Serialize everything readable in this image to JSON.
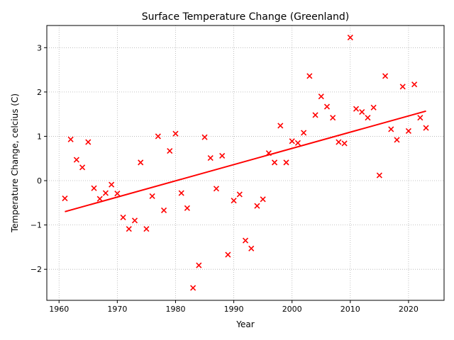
{
  "chart_data": {
    "type": "scatter",
    "title": "Surface Temperature Change (Greenland)",
    "xlabel": "Year",
    "ylabel": "Temperature Change, celcius (C)",
    "xlim": [
      1957.9,
      2026.1
    ],
    "ylim": [
      -2.7,
      3.5
    ],
    "xticks": [
      1960,
      1970,
      1980,
      1990,
      2000,
      2010,
      2020
    ],
    "yticks": [
      -2,
      -1,
      0,
      1,
      2,
      3
    ],
    "ytick_labels": [
      "−2",
      "−1",
      "0",
      "1",
      "2",
      "3"
    ],
    "grid": true,
    "marker_color": "#ff0000",
    "trend_color": "#ff0000",
    "series": [
      {
        "marker": "x",
        "x": [
          1961,
          1962,
          1963,
          1964,
          1965,
          1966,
          1967,
          1968,
          1969,
          1970,
          1971,
          1972,
          1973,
          1974,
          1975,
          1976,
          1977,
          1978,
          1979,
          1980,
          1981,
          1982,
          1983,
          1984,
          1985,
          1986,
          1987,
          1988,
          1989,
          1990,
          1991,
          1992,
          1993,
          1994,
          1995,
          1996,
          1997,
          1998,
          1999,
          2000,
          2001,
          2002,
          2003,
          2004,
          2005,
          2006,
          2007,
          2008,
          2009,
          2010,
          2011,
          2012,
          2013,
          2014,
          2015,
          2016,
          2017,
          2018,
          2019,
          2020,
          2021,
          2022,
          2023
        ],
        "y": [
          -0.4,
          0.93,
          0.47,
          0.3,
          0.87,
          -0.17,
          -0.41,
          -0.28,
          -0.09,
          -0.29,
          -0.83,
          -1.09,
          -0.9,
          0.41,
          -1.09,
          -0.35,
          1.0,
          -0.67,
          0.67,
          1.06,
          -0.28,
          -0.62,
          -2.42,
          -1.91,
          0.98,
          0.51,
          -0.18,
          0.56,
          -1.67,
          -0.45,
          -0.31,
          -1.35,
          -1.53,
          -0.57,
          -0.42,
          0.62,
          0.41,
          1.24,
          0.41,
          0.89,
          0.85,
          1.08,
          2.36,
          1.48,
          1.9,
          1.67,
          1.42,
          0.87,
          0.84,
          3.23,
          1.62,
          1.55,
          1.42,
          1.65,
          0.12,
          2.36,
          1.16,
          0.92,
          2.12,
          1.12,
          2.17,
          1.42,
          1.19
        ]
      }
    ],
    "trend_line": {
      "x": [
        1961,
        2023
      ],
      "y": [
        -0.7,
        1.57
      ]
    }
  }
}
